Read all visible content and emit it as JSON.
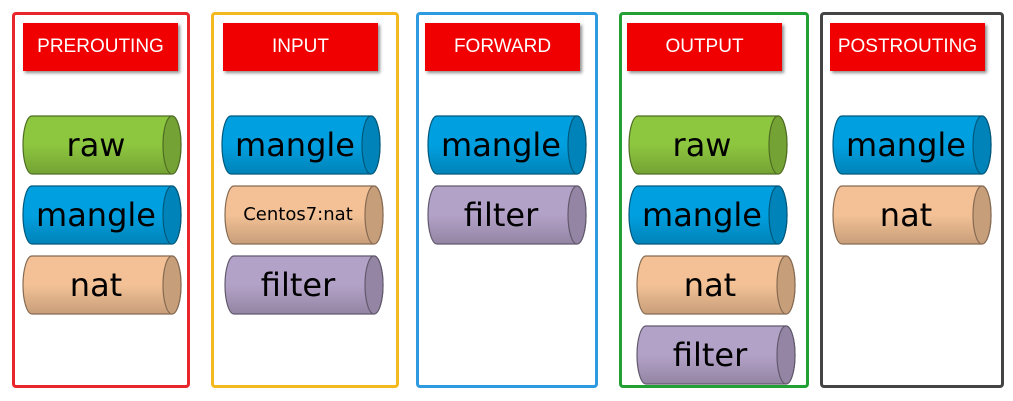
{
  "colors": {
    "raw": "#8dc63f",
    "mangle": "#00a0e0",
    "nat": "#f3c195",
    "filter": "#b3a2c7",
    "title_bg": "#f00000"
  },
  "chains": [
    {
      "title": "PREROUTING",
      "border_color": "#e8262c",
      "tables": [
        {
          "label": "raw",
          "kind": "raw"
        },
        {
          "label": "mangle",
          "kind": "mangle"
        },
        {
          "label": "nat",
          "kind": "nat"
        }
      ]
    },
    {
      "title": "INPUT",
      "border_color": "#f5b920",
      "tables": [
        {
          "label": "mangle",
          "kind": "mangle"
        },
        {
          "label": "Centos7:nat",
          "kind": "nat"
        },
        {
          "label": "filter",
          "kind": "filter"
        }
      ]
    },
    {
      "title": "FORWARD",
      "border_color": "#2e9be0",
      "tables": [
        {
          "label": "mangle",
          "kind": "mangle"
        },
        {
          "label": "filter",
          "kind": "filter"
        }
      ]
    },
    {
      "title": "OUTPUT",
      "border_color": "#22a033",
      "tables": [
        {
          "label": "raw",
          "kind": "raw"
        },
        {
          "label": "mangle",
          "kind": "mangle"
        },
        {
          "label": "nat",
          "kind": "nat"
        },
        {
          "label": "filter",
          "kind": "filter"
        }
      ]
    },
    {
      "title": "POSTROUTING",
      "border_color": "#444444",
      "tables": [
        {
          "label": "mangle",
          "kind": "mangle"
        },
        {
          "label": "nat",
          "kind": "nat"
        }
      ]
    }
  ]
}
